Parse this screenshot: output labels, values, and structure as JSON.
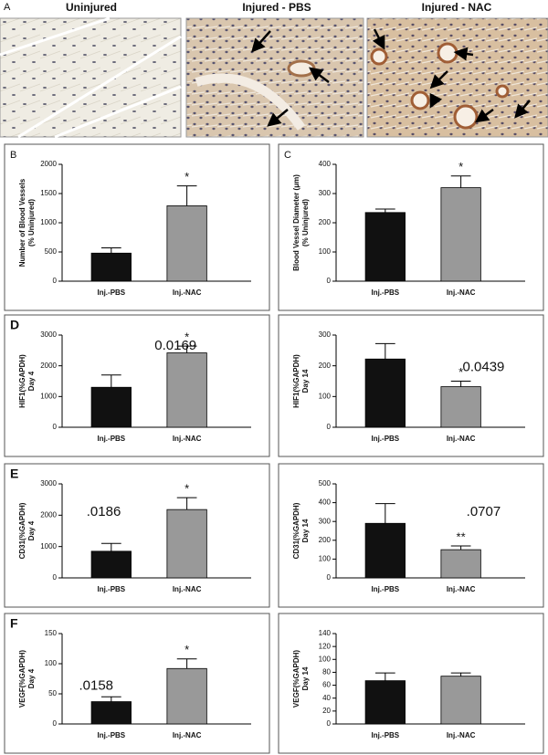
{
  "panel_a": {
    "label": "A",
    "headers": [
      "Uninjured",
      "Injured - PBS",
      "Injured - NAC"
    ]
  },
  "chart_data": [
    {
      "type": "bar",
      "panel": "B",
      "ylabel": [
        "Number of Blood Vessels",
        "(% Uninjured)"
      ],
      "categories": [
        "Inj.-PBS",
        "Inj.-NAC"
      ],
      "values": [
        480,
        1290
      ],
      "errors": [
        90,
        340
      ],
      "colors": [
        "#111111",
        "#999999"
      ],
      "ylim": [
        0,
        2000
      ],
      "yticks": [
        0,
        500,
        1000,
        1500,
        2000
      ],
      "annotations": [
        "*"
      ]
    },
    {
      "type": "bar",
      "panel": "C",
      "ylabel": [
        "Blood Vessel Diameter (μm)",
        "(% Uninjured)"
      ],
      "categories": [
        "Inj.-PBS",
        "Inj.-NAC"
      ],
      "values": [
        235,
        320
      ],
      "errors": [
        12,
        40
      ],
      "colors": [
        "#111111",
        "#999999"
      ],
      "ylim": [
        0,
        400
      ],
      "yticks": [
        0,
        100,
        200,
        300,
        400
      ],
      "annotations": [
        "*"
      ]
    },
    {
      "type": "bar",
      "panel": "D",
      "ylabel": [
        "HIF1(%GAPDH)",
        "Day 4"
      ],
      "categories": [
        "Inj.-PBS",
        "Inj.-NAC"
      ],
      "values": [
        1300,
        2420
      ],
      "errors": [
        400,
        220
      ],
      "colors": [
        "#111111",
        "#999999"
      ],
      "ylim": [
        0,
        3000
      ],
      "yticks": [
        0,
        1000,
        2000,
        3000
      ],
      "annotations": [
        "*",
        "0.0169"
      ]
    },
    {
      "type": "bar",
      "ylabel": [
        "HIF1(%GAPDH)",
        "Day 14"
      ],
      "categories": [
        "Inj.-PBS",
        "Inj.-NAC"
      ],
      "values": [
        222,
        132
      ],
      "errors": [
        50,
        18
      ],
      "colors": [
        "#111111",
        "#999999"
      ],
      "ylim": [
        0,
        300
      ],
      "yticks": [
        0,
        100,
        200,
        300
      ],
      "annotations": [
        "*",
        "0.0439"
      ]
    },
    {
      "type": "bar",
      "panel": "E",
      "ylabel": [
        "CD31(%GAPDH)",
        "Day 4"
      ],
      "categories": [
        "Inj.-PBS",
        "Inj.-NAC"
      ],
      "values": [
        850,
        2180
      ],
      "errors": [
        250,
        380
      ],
      "colors": [
        "#111111",
        "#999999"
      ],
      "ylim": [
        0,
        3000
      ],
      "yticks": [
        0,
        1000,
        2000,
        3000
      ],
      "annotations": [
        "*",
        ".0186"
      ]
    },
    {
      "type": "bar",
      "ylabel": [
        "CD31(%GAPDH)",
        "Day 14"
      ],
      "categories": [
        "Inj.-PBS",
        "Inj.-NAC"
      ],
      "values": [
        290,
        150
      ],
      "errors": [
        105,
        20
      ],
      "colors": [
        "#111111",
        "#999999"
      ],
      "ylim": [
        0,
        500
      ],
      "yticks": [
        0,
        100,
        200,
        300,
        400,
        500
      ],
      "annotations": [
        "**",
        ".0707"
      ]
    },
    {
      "type": "bar",
      "panel": "F",
      "ylabel": [
        "VEGF(%GAPDH)",
        "Day 4"
      ],
      "categories": [
        "Inj.-PBS",
        "Inj.-NAC"
      ],
      "values": [
        37,
        92
      ],
      "errors": [
        8,
        16
      ],
      "colors": [
        "#111111",
        "#999999"
      ],
      "ylim": [
        0,
        150
      ],
      "yticks": [
        0,
        50,
        100,
        150
      ],
      "annotations": [
        "*",
        ".0158"
      ]
    },
    {
      "type": "bar",
      "ylabel": [
        "VEGF(%GAPDH)",
        "Day 14"
      ],
      "categories": [
        "Inj.-PBS",
        "Inj.-NAC"
      ],
      "values": [
        67,
        74
      ],
      "errors": [
        12,
        5
      ],
      "colors": [
        "#111111",
        "#999999"
      ],
      "ylim": [
        0,
        140
      ],
      "yticks": [
        0,
        20,
        40,
        60,
        80,
        100,
        120,
        140
      ]
    }
  ]
}
